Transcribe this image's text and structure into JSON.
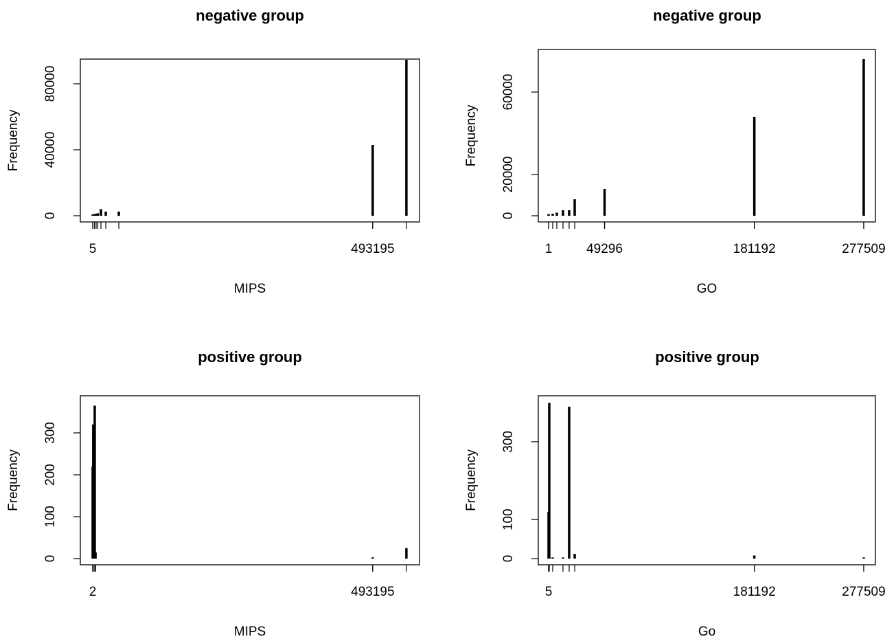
{
  "chart_data": [
    {
      "type": "bar",
      "title": "negative group",
      "xlabel": "MIPS",
      "ylabel": "Frequency",
      "color": "#000000",
      "x": [
        5,
        3000,
        6000,
        9000,
        14500,
        23000,
        46000,
        493195,
        552500
      ],
      "values": [
        800,
        1000,
        1200,
        1500,
        4000,
        2500,
        2500,
        42900,
        94600
      ],
      "xlim": [
        -21800,
        575600
      ],
      "xticks": [
        5,
        493195
      ],
      "ylim": [
        -3750,
        95000
      ],
      "yticks": [
        0,
        40000,
        80000
      ]
    },
    {
      "type": "bar",
      "title": "negative group",
      "xlabel": "GO",
      "ylabel": "Frequency",
      "color": "#000000",
      "x": [
        1,
        3600,
        7250,
        12700,
        18100,
        23000,
        49296,
        181192,
        277509
      ],
      "values": [
        800,
        1000,
        1500,
        2700,
        2700,
        8000,
        13000,
        48000,
        76000
      ],
      "xlim": [
        -9070,
        287800
      ],
      "xticks": [
        1,
        49296,
        181192,
        277509
      ],
      "ylim": [
        -3000,
        80670
      ],
      "yticks": [
        0,
        20000,
        60000
      ]
    },
    {
      "type": "bar",
      "title": "positive group",
      "xlabel": "MIPS",
      "ylabel": "Frequency",
      "color": "#000000",
      "x": [
        2,
        1000,
        3600,
        5000,
        493195,
        552500
      ],
      "values": [
        220,
        320,
        365,
        15,
        3,
        25
      ],
      "xlim": [
        -21760,
        575600
      ],
      "xticks": [
        2,
        493195
      ],
      "ylim": [
        -14.75,
        388.5
      ],
      "yticks": [
        0,
        100,
        200,
        300
      ]
    },
    {
      "type": "bar",
      "title": "positive group",
      "xlabel": "Go",
      "ylabel": "Frequency",
      "color": "#000000",
      "x": [
        5,
        600,
        3600,
        12700,
        18100,
        23000,
        181192,
        277509
      ],
      "values": [
        120,
        400,
        3,
        3,
        390,
        12,
        8,
        3
      ],
      "xlim": [
        -9070,
        287800
      ],
      "xticks": [
        5,
        181192,
        277509
      ],
      "ylim": [
        -15.9,
        418
      ],
      "yticks": [
        0,
        100,
        300
      ]
    }
  ]
}
